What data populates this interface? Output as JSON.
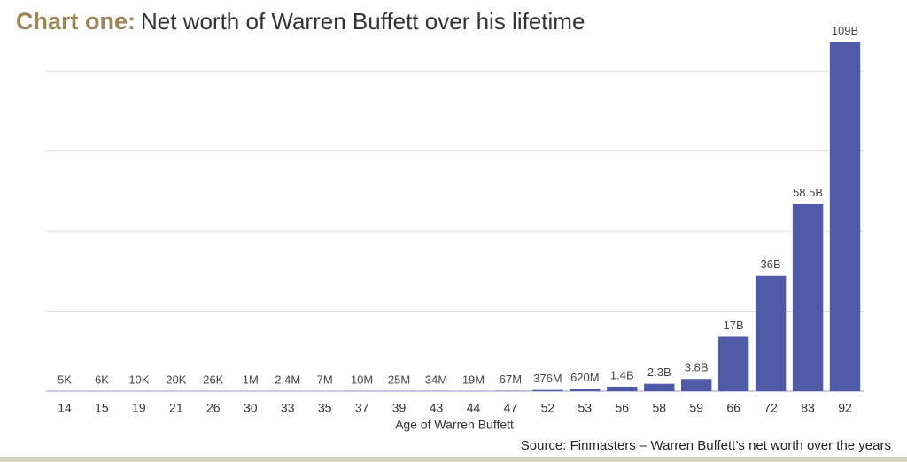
{
  "chart_data": {
    "type": "bar",
    "title_prefix": "Chart one:",
    "title": "Net worth of Warren Buffett over his lifetime",
    "x_label": "Age of Warren Buffett",
    "source": "Source: Finmasters – Warren Buffett’s net worth over the years",
    "categories": [
      "14",
      "15",
      "19",
      "21",
      "26",
      "30",
      "33",
      "35",
      "37",
      "39",
      "43",
      "44",
      "47",
      "52",
      "53",
      "56",
      "58",
      "59",
      "66",
      "72",
      "83",
      "92"
    ],
    "values": [
      5000,
      6000,
      10000,
      20000,
      26000,
      1000000,
      2400000,
      7000000,
      10000000,
      25000000,
      34000000,
      19000000,
      67000000,
      376000000,
      620000000,
      1400000000,
      2300000000,
      3800000000,
      17000000000,
      36000000000,
      58500000000,
      109000000000
    ],
    "value_labels": [
      "5K",
      "6K",
      "10K",
      "20K",
      "26K",
      "1M",
      "2.4M",
      "7M",
      "10M",
      "25M",
      "34M",
      "19M",
      "67M",
      "376M",
      "620M",
      "1.4B",
      "2.3B",
      "3.8B",
      "17B",
      "36B",
      "58.5B",
      "109B"
    ],
    "color": "#4f5aa8",
    "ylim": [
      0,
      110000000000
    ],
    "yticks": [
      25000000000,
      50000000000,
      75000000000,
      100000000000
    ],
    "grid": true
  }
}
